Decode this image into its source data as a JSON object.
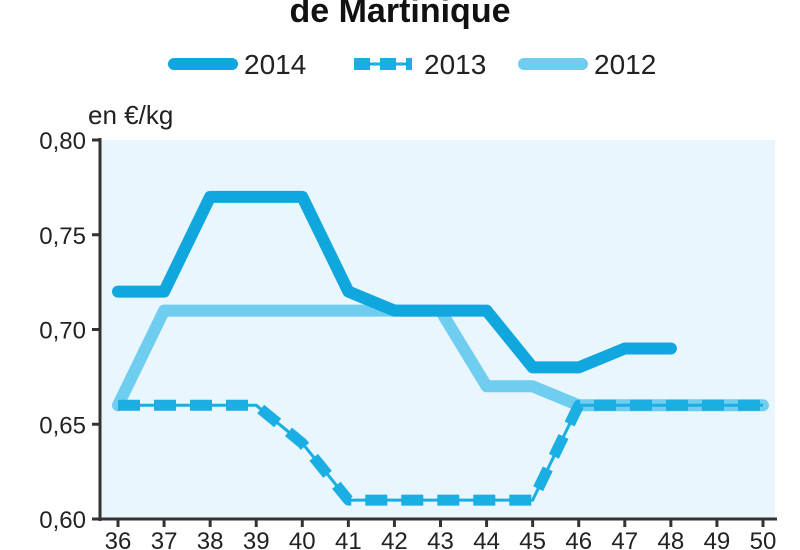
{
  "chart_data": {
    "type": "line",
    "title": "de Martinique",
    "ylabel": "en €/kg",
    "xlabel": "",
    "x": [
      36,
      37,
      38,
      39,
      40,
      41,
      42,
      43,
      44,
      45,
      46,
      47,
      48,
      49,
      50
    ],
    "x_tick_labels": [
      "36",
      "37",
      "38",
      "39",
      "40",
      "41",
      "42",
      "43",
      "44",
      "45",
      "46",
      "47",
      "48",
      "49",
      "50"
    ],
    "ylim": [
      0.6,
      0.8
    ],
    "y_ticks": [
      0.6,
      0.65,
      0.7,
      0.75,
      0.8
    ],
    "y_tick_labels": [
      "0,60",
      "0,65",
      "0,70",
      "0,75",
      "0,80"
    ],
    "grid": false,
    "legend_position": "top",
    "series": [
      {
        "name": "2014",
        "style": "solid",
        "color": "#0fa7de",
        "x": [
          36,
          37,
          38,
          39,
          40,
          41,
          42,
          43,
          44,
          45,
          46,
          47,
          48
        ],
        "values": [
          0.72,
          0.72,
          0.77,
          0.77,
          0.77,
          0.72,
          0.71,
          0.71,
          0.71,
          0.68,
          0.68,
          0.69,
          0.69
        ]
      },
      {
        "name": "2013",
        "style": "dashed",
        "color": "#1aaee3",
        "x": [
          36,
          37,
          38,
          39,
          40,
          41,
          42,
          43,
          44,
          45,
          46,
          47,
          48,
          49,
          50
        ],
        "values": [
          0.66,
          0.66,
          0.66,
          0.66,
          0.64,
          0.61,
          0.61,
          0.61,
          0.61,
          0.61,
          0.66,
          0.66,
          0.66,
          0.66,
          0.66
        ]
      },
      {
        "name": "2012",
        "style": "solid",
        "color": "#6fcdf0",
        "x": [
          36,
          37,
          38,
          39,
          40,
          41,
          42,
          43,
          44,
          45,
          46,
          47,
          48,
          49,
          50
        ],
        "values": [
          0.66,
          0.71,
          0.71,
          0.71,
          0.71,
          0.71,
          0.71,
          0.71,
          0.67,
          0.67,
          0.66,
          0.66,
          0.66,
          0.66,
          0.66
        ]
      }
    ],
    "colors": {
      "plot_background": "#e9f6fd",
      "axis": "#333333"
    }
  }
}
